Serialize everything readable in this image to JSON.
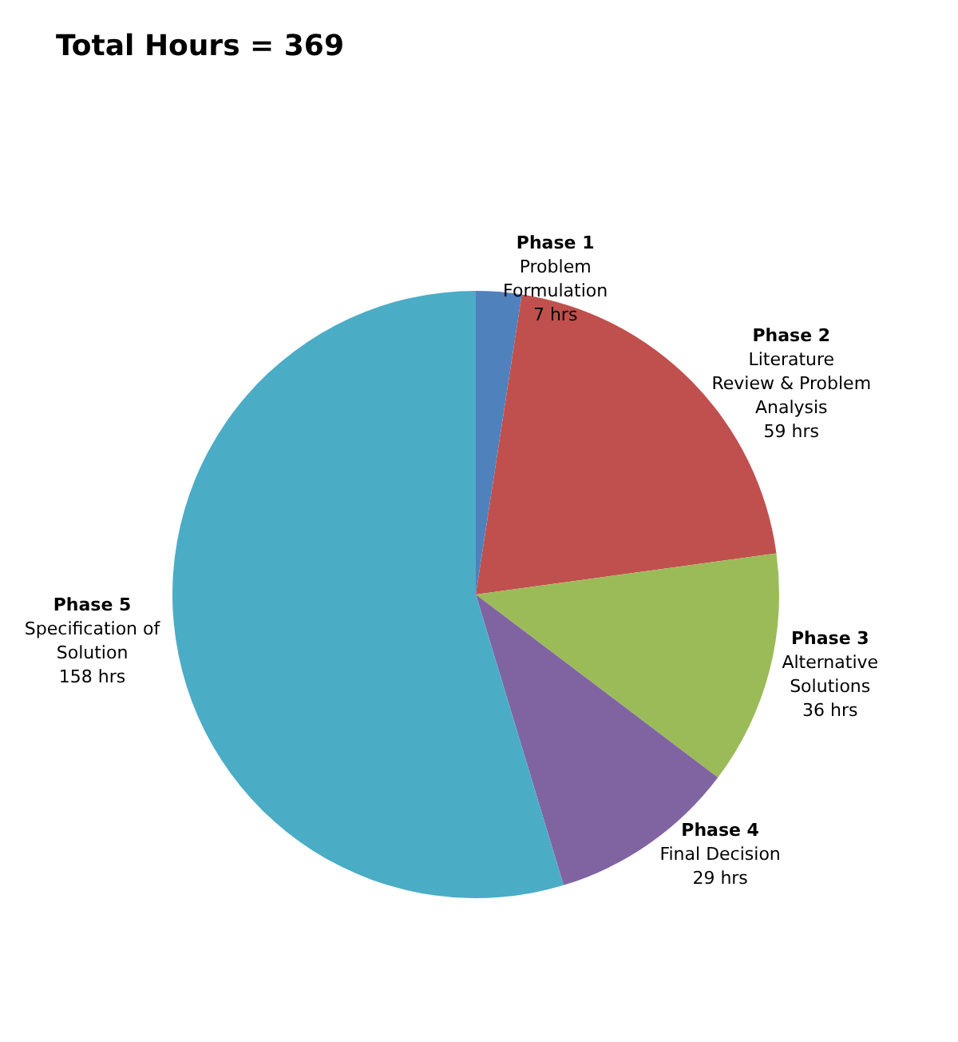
{
  "chart_data": {
    "type": "pie",
    "title": "Total Hours = 369",
    "categories": [
      "Phase 1 Problem Formulation",
      "Phase 2 Literature Review & Problem Analysis",
      "Phase 3 Alternative Solutions",
      "Phase 4 Final Decision",
      "Phase 5 Specification of Solution"
    ],
    "values": [
      7,
      59,
      36,
      29,
      158
    ],
    "value_labels": [
      "7 hrs",
      "59 hrs",
      "36 hrs",
      "29 hrs",
      "158 hrs"
    ],
    "colors": [
      "#4f81bd",
      "#c0504d",
      "#9bbb59",
      "#8064a2",
      "#4bacc6"
    ],
    "legend": false
  }
}
